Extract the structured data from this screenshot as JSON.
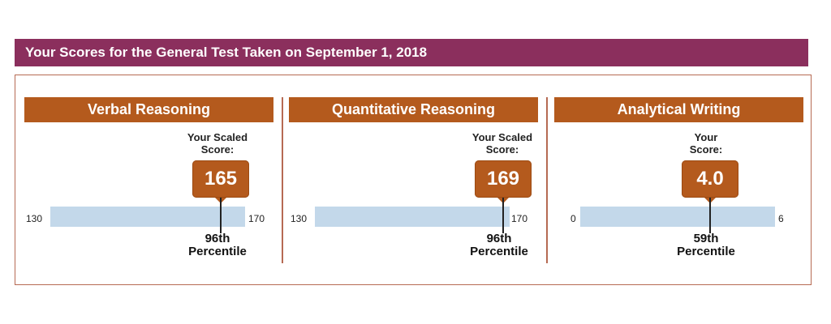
{
  "header": {
    "title": "Your Scores for the General Test Taken on September 1, 2018"
  },
  "sections": [
    {
      "name": "Verbal Reasoning",
      "score_label_line1": "Your Scaled",
      "score_label_line2": "Score:",
      "score": "165",
      "range_min": "130",
      "range_max": "170",
      "percentile_value": "96th",
      "percentile_label": "Percentile",
      "score_numeric": 165,
      "min_numeric": 130,
      "max_numeric": 170
    },
    {
      "name": "Quantitative Reasoning",
      "score_label_line1": "Your Scaled",
      "score_label_line2": "Score:",
      "score": "169",
      "range_min": "130",
      "range_max": "170",
      "percentile_value": "96th",
      "percentile_label": "Percentile",
      "score_numeric": 169,
      "min_numeric": 130,
      "max_numeric": 170
    },
    {
      "name": "Analytical Writing",
      "score_label_line1": "Your",
      "score_label_line2": "Score:",
      "score": "4.0",
      "range_min": "0",
      "range_max": "6",
      "percentile_value": "59th",
      "percentile_label": "Percentile",
      "score_numeric": 4.0,
      "min_numeric": 0,
      "max_numeric": 6
    }
  ],
  "colors": {
    "title_bar": "#8b2f5d",
    "section_header": "#b45a1d",
    "score_box": "#b45a1d",
    "range_bar": "#c3d8ea",
    "border": "#b66a53"
  }
}
